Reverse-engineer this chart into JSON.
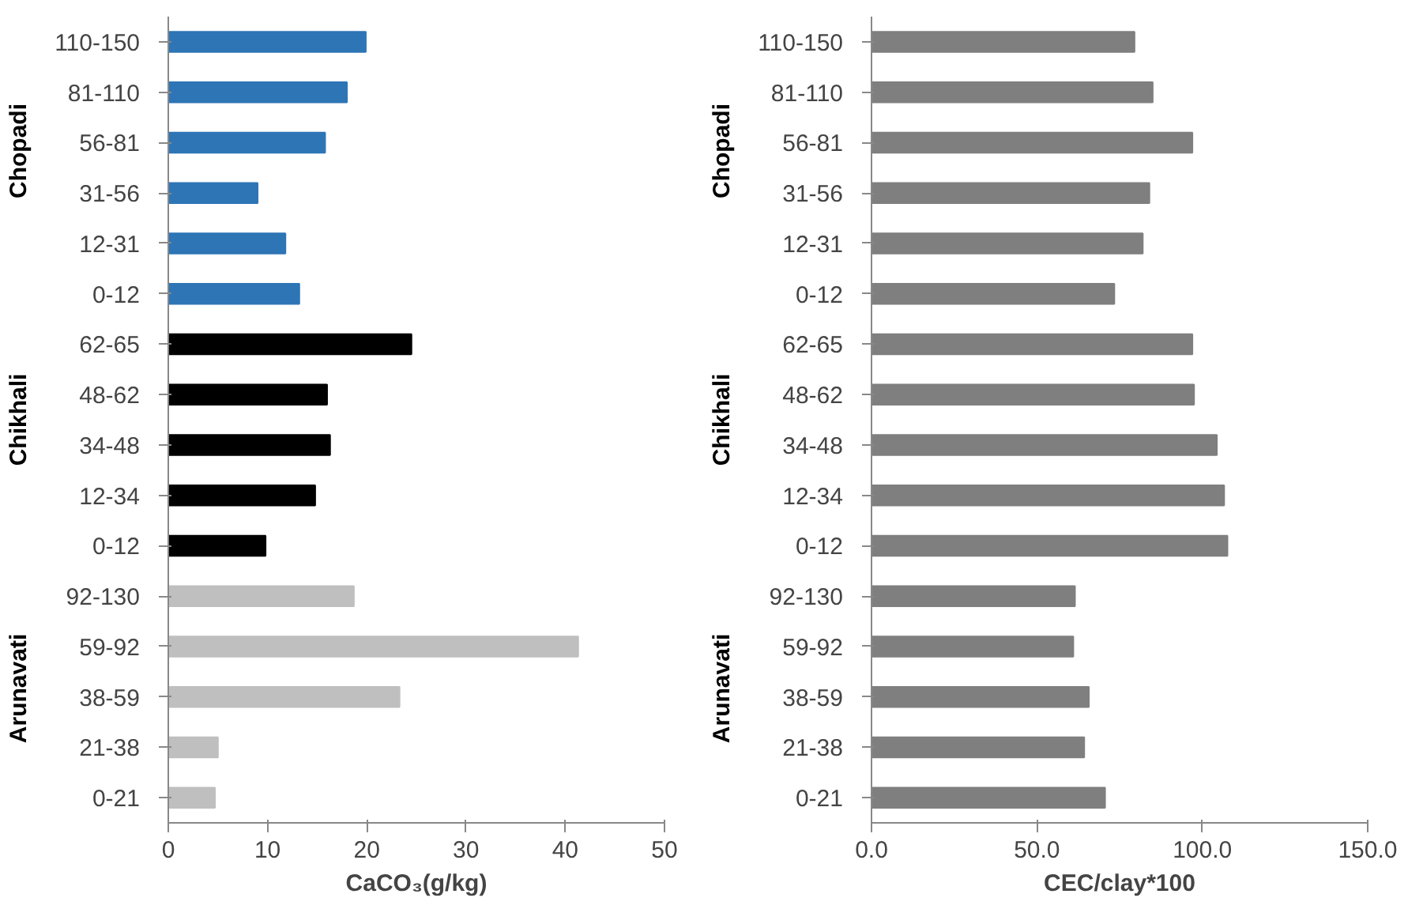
{
  "chart_data": [
    {
      "type": "bar",
      "orientation": "horizontal",
      "xlabel": "CaCO₃(g/kg)",
      "categories": [
        "110-150",
        "81-110",
        "56-81",
        "31-56",
        "12-31",
        "0-12",
        "62-65",
        "48-62",
        "34-48",
        "12-34",
        "0-12",
        "92-130",
        "59-92",
        "38-59",
        "21-38",
        "0-21"
      ],
      "values": [
        19.9,
        18.0,
        15.8,
        9.0,
        11.8,
        13.2,
        24.5,
        16.0,
        16.3,
        14.8,
        9.8,
        18.7,
        41.3,
        23.3,
        5.0,
        4.7
      ],
      "colors": [
        "#2e75b6",
        "#2e75b6",
        "#2e75b6",
        "#2e75b6",
        "#2e75b6",
        "#2e75b6",
        "#000000",
        "#000000",
        "#000000",
        "#000000",
        "#000000",
        "#bfbfbf",
        "#bfbfbf",
        "#bfbfbf",
        "#bfbfbf",
        "#bfbfbf"
      ],
      "xlim": [
        0,
        50
      ],
      "xticks": [
        0,
        10,
        20,
        30,
        40,
        50
      ],
      "grid": false,
      "annotations": [
        "Chopadi",
        "Chikhali",
        "Arunavati"
      ]
    },
    {
      "type": "bar",
      "orientation": "horizontal",
      "xlabel": "CEC/clay*100",
      "categories": [
        "110-150",
        "81-110",
        "56-81",
        "31-56",
        "12-31",
        "0-12",
        "62-65",
        "48-62",
        "34-48",
        "12-34",
        "0-12",
        "92-130",
        "59-92",
        "38-59",
        "21-38",
        "0-21"
      ],
      "values": [
        79.5,
        85,
        97,
        84,
        82,
        73.4,
        97,
        97.5,
        104.4,
        106.6,
        107.6,
        61.5,
        61,
        65.7,
        64.3,
        70.6
      ],
      "color": "#7f7f7f",
      "xlim": [
        0,
        150
      ],
      "xticks": [
        {
          "value": 0,
          "label": "0.0"
        },
        {
          "value": 50,
          "label": "50.0"
        },
        {
          "value": 100,
          "label": "100.0"
        },
        {
          "value": 150,
          "label": "150.0"
        }
      ],
      "grid": false,
      "annotations": [
        "Chopadi",
        "Chikhali",
        "Arunavati"
      ]
    }
  ]
}
